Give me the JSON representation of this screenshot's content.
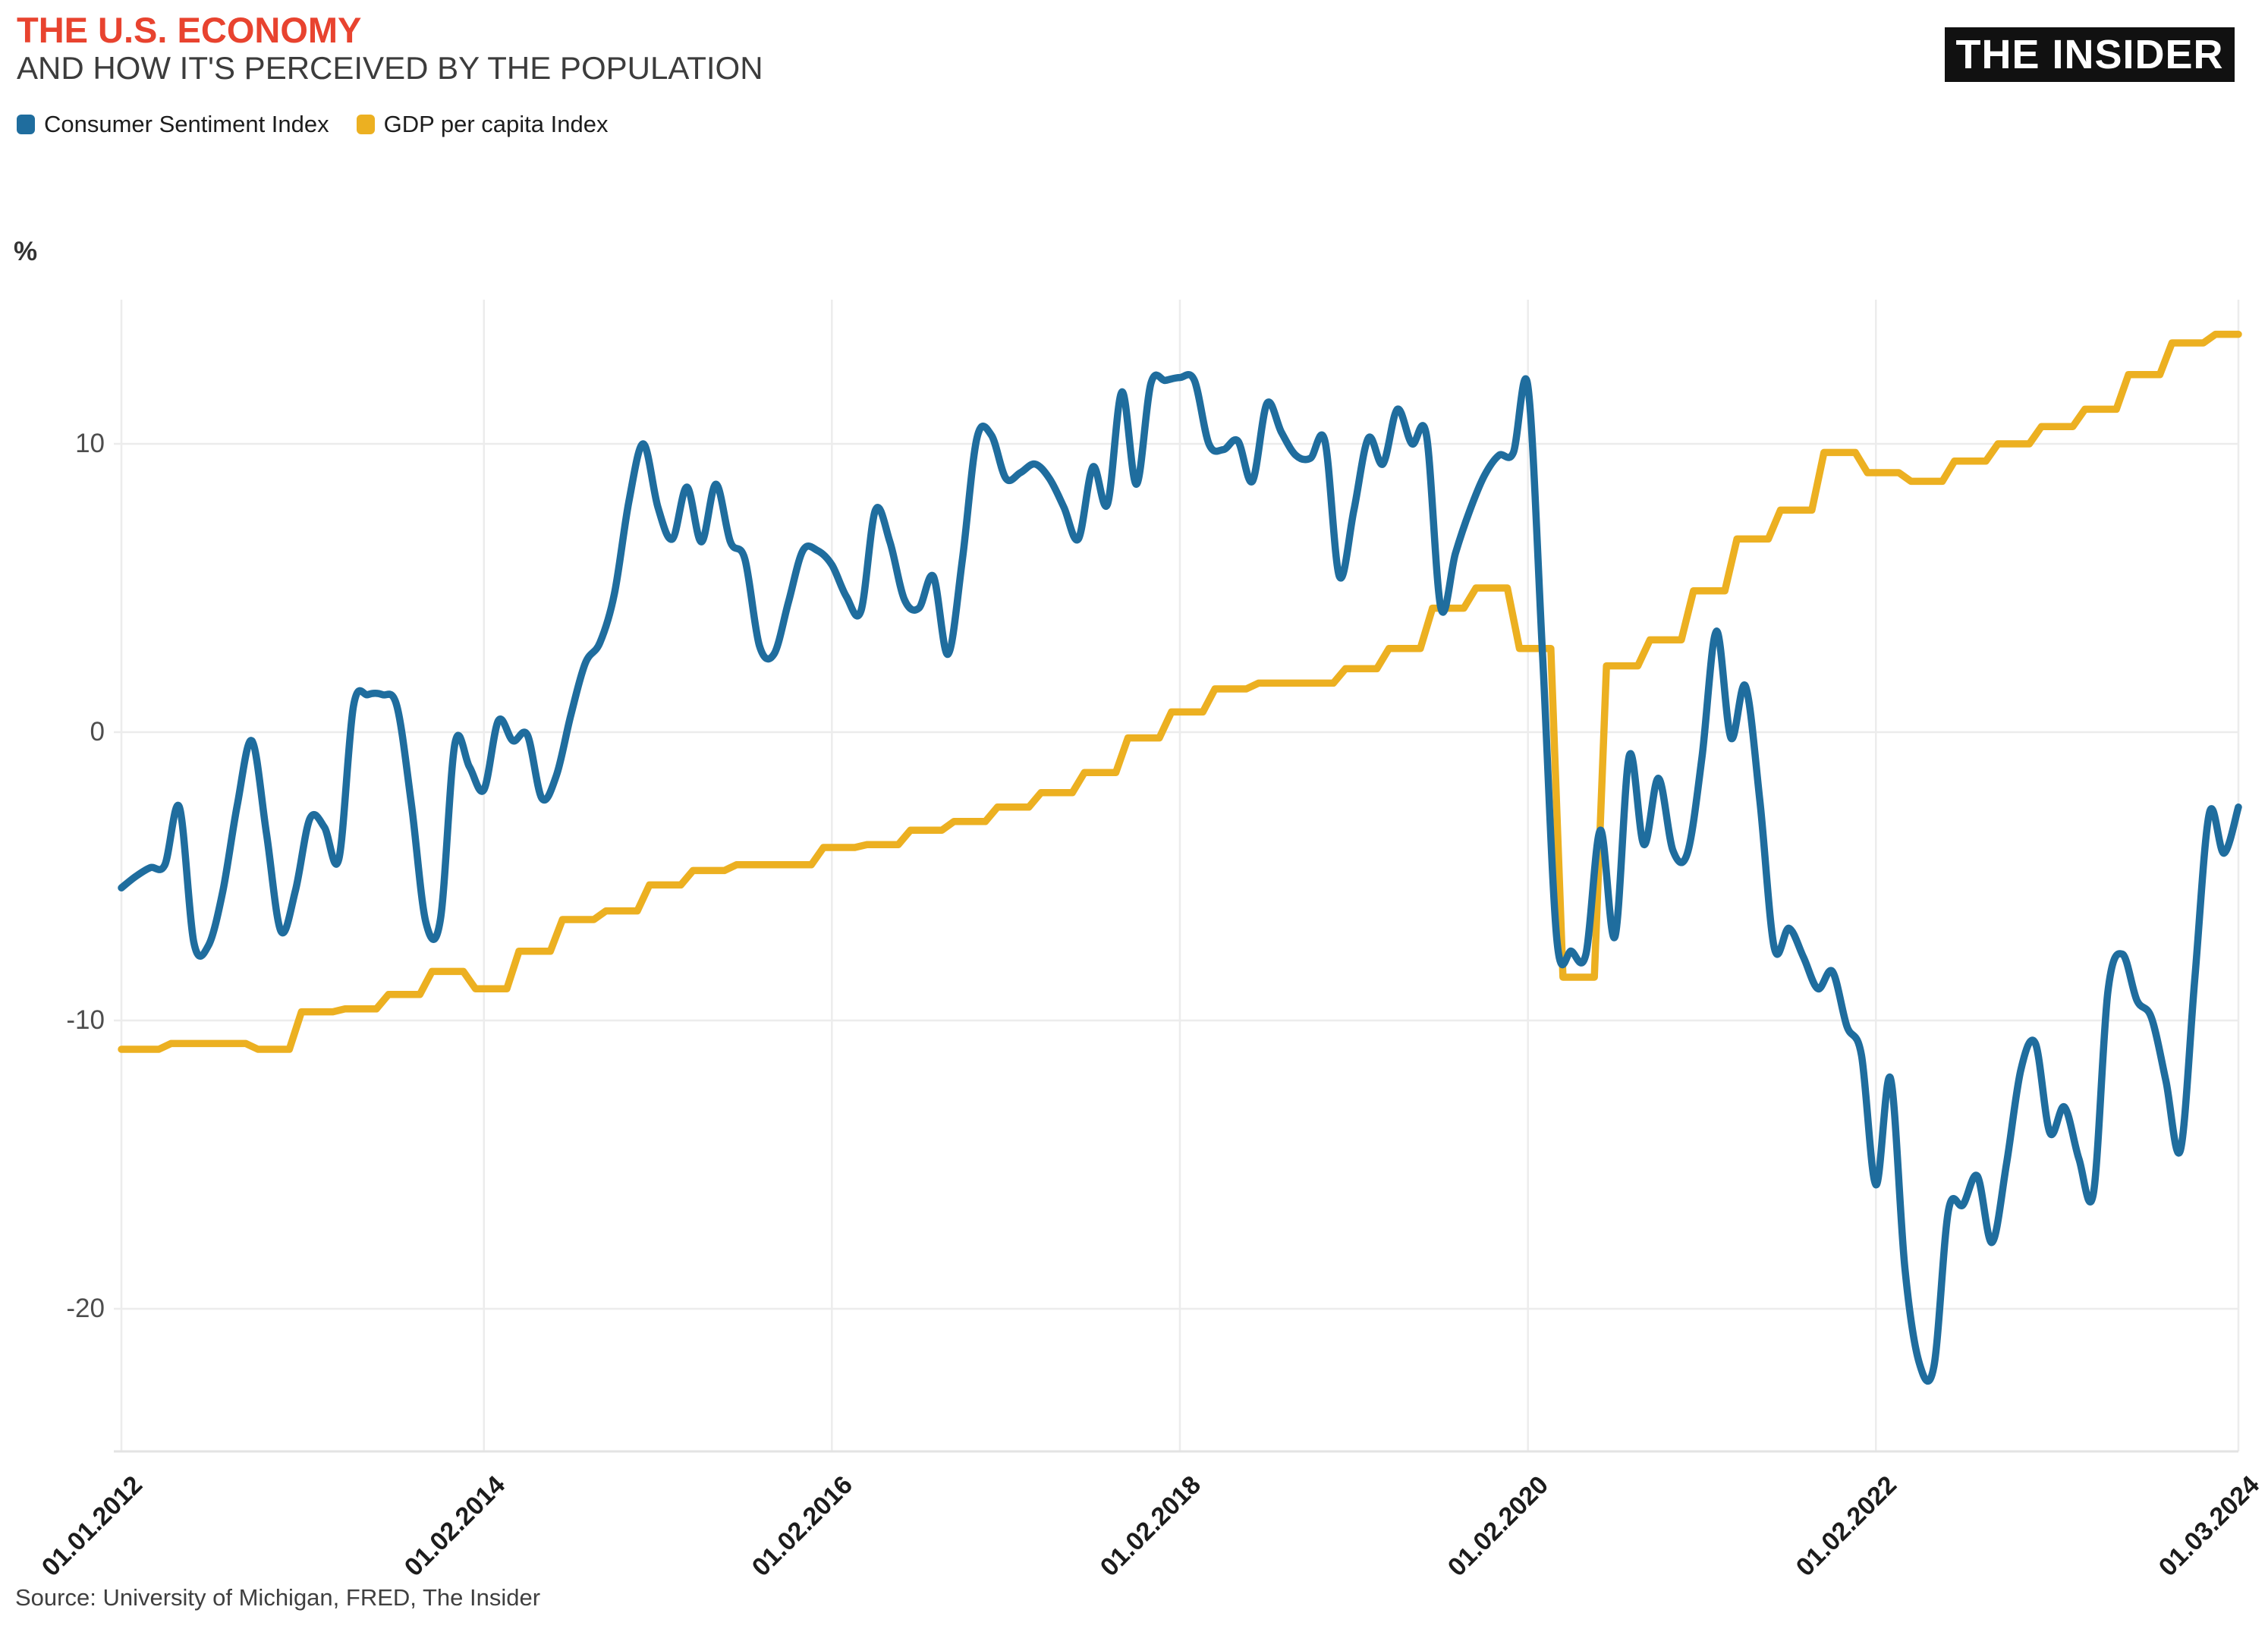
{
  "header": {
    "title": "THE U.S. ECONOMY",
    "subtitle": "AND HOW IT'S PERCEIVED BY THE POPULATION",
    "title_color": "#e8432f",
    "logo_text": "THE INSIDER"
  },
  "legend": [
    {
      "label": "Consumer Sentiment Index",
      "color": "#1f6d9e"
    },
    {
      "label": "GDP per capita Index",
      "color": "#ecb021"
    }
  ],
  "source": "Source: University of Michigan, FRED, The Insider",
  "chart_data": {
    "type": "line",
    "title": "THE U.S. ECONOMY — AND HOW IT'S PERCEIVED BY THE POPULATION",
    "ylabel": "%",
    "ylim": [
      -25,
      15
    ],
    "y_ticks": [
      10,
      0,
      -10,
      -20
    ],
    "grid": true,
    "legend_position": "top-left",
    "x_axis": {
      "start": "2012-01",
      "end": "2024-03",
      "total_months": 146,
      "tick_labels": [
        "01.01.2012",
        "01.02.2014",
        "01.02.2016",
        "01.02.2018",
        "01.02.2020",
        "01.02.2022",
        "01.03.2024"
      ],
      "tick_month_index": [
        0,
        25,
        49,
        73,
        97,
        121,
        146
      ]
    },
    "series": [
      {
        "name": "Consumer Sentiment Index",
        "color": "#1f6d9e",
        "frequency": "monthly",
        "start": "2012-01",
        "values": [
          -5.4,
          -5.0,
          -4.7,
          -4.6,
          -2.6,
          -7.3,
          -7.4,
          -5.5,
          -2.5,
          -0.3,
          -3.5,
          -6.9,
          -5.5,
          -3.0,
          -3.3,
          -4.4,
          0.9,
          1.3,
          1.3,
          0.9,
          -2.5,
          -6.6,
          -6.5,
          -0.4,
          -1.2,
          -2.0,
          0.4,
          -0.3,
          -0.1,
          -2.3,
          -1.5,
          0.6,
          2.4,
          3.1,
          4.8,
          8.0,
          10.0,
          7.8,
          6.7,
          8.5,
          6.6,
          8.6,
          6.6,
          6.0,
          3.0,
          2.7,
          4.5,
          6.3,
          6.3,
          5.8,
          4.7,
          4.2,
          7.7,
          6.6,
          4.6,
          4.3,
          5.4,
          2.7,
          6.0,
          10.2,
          10.3,
          8.8,
          9.0,
          9.3,
          8.8,
          7.8,
          6.7,
          9.2,
          7.9,
          11.8,
          8.6,
          12.1,
          12.2,
          12.3,
          12.2,
          10.0,
          9.8,
          10.1,
          8.7,
          11.4,
          10.4,
          9.6,
          9.5,
          10.1,
          5.4,
          7.7,
          10.2,
          9.3,
          11.2,
          10.0,
          10.3,
          4.3,
          6.2,
          7.7,
          8.9,
          9.6,
          9.7,
          12.0,
          2.8,
          -7.2,
          -7.6,
          -7.7,
          -3.4,
          -7.1,
          -0.8,
          -3.9,
          -1.6,
          -4.1,
          -4.2,
          -0.9,
          3.5,
          -0.2,
          1.6,
          -2.4,
          -7.5,
          -6.8,
          -7.8,
          -8.9,
          -8.3,
          -10.2,
          -11.2,
          -15.7,
          -12.0,
          -18.6,
          -21.9,
          -22.0,
          -16.6,
          -16.4,
          -15.4,
          -17.7,
          -15.0,
          -11.7,
          -10.8,
          -13.9,
          -13.0,
          -14.8,
          -16.0,
          -9.0,
          -7.7,
          -9.3,
          -9.9,
          -12.1,
          -14.5,
          -8.5,
          -2.8,
          -4.2,
          -2.6
        ]
      },
      {
        "name": "GDP per capita Index",
        "color": "#ecb021",
        "frequency": "quarterly",
        "start": "2012-Q1",
        "values": [
          -11.0,
          -10.8,
          -10.8,
          -11.0,
          -9.7,
          -9.6,
          -9.1,
          -8.3,
          -8.9,
          -7.6,
          -6.5,
          -6.2,
          -5.3,
          -4.8,
          -4.6,
          -4.6,
          -4.0,
          -3.9,
          -3.4,
          -3.1,
          -2.6,
          -2.1,
          -1.4,
          -0.2,
          0.7,
          1.5,
          1.7,
          1.7,
          2.2,
          2.9,
          4.3,
          5.0,
          2.9,
          -8.5,
          2.3,
          3.2,
          4.9,
          6.7,
          7.7,
          9.7,
          9.0,
          8.7,
          9.4,
          10.0,
          10.6,
          11.2,
          12.4,
          13.5,
          13.8
        ]
      }
    ]
  }
}
